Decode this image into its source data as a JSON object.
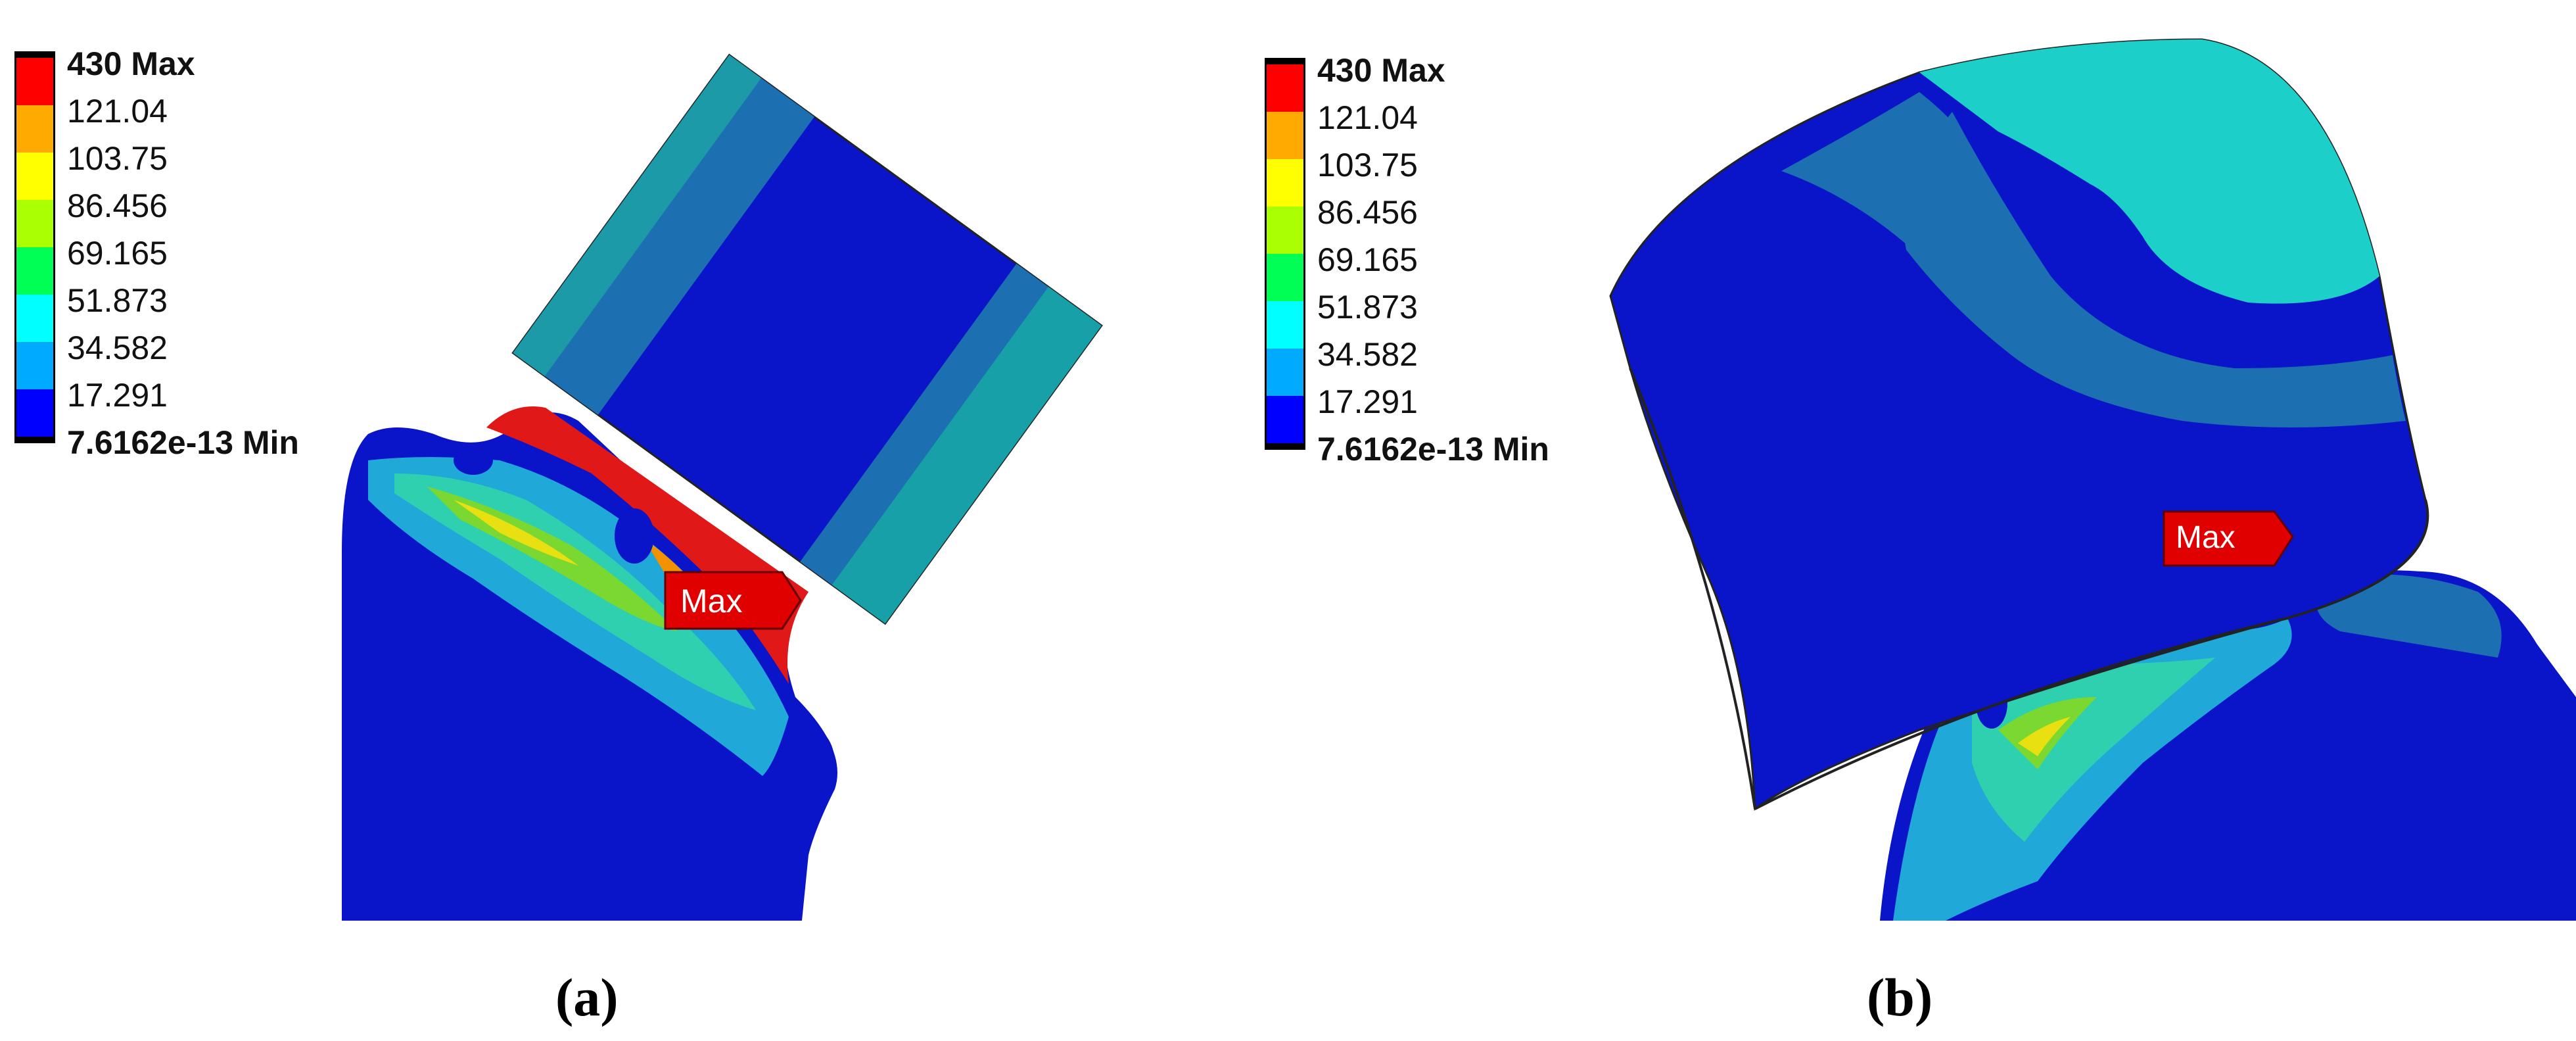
{
  "legend": {
    "max_label": "430 Max",
    "min_label": "7.6162e-13 Min",
    "levels": [
      "121.04",
      "103.75",
      "86.456",
      "69.165",
      "51.873",
      "34.582",
      "17.291"
    ],
    "colors": [
      "#ff0000",
      "#ffaa00",
      "#ffff00",
      "#aaff00",
      "#00ff55",
      "#00ffff",
      "#00aaff",
      "#0000ff"
    ]
  },
  "panels": [
    {
      "caption": "(a)",
      "probe_label": "Max"
    },
    {
      "caption": "(b)",
      "probe_label": "Max"
    }
  ]
}
